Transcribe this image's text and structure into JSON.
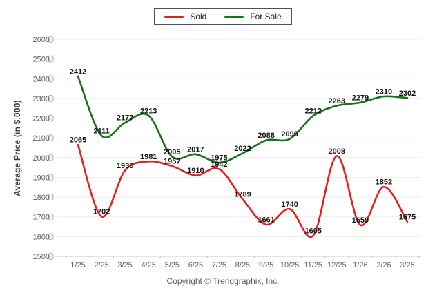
{
  "legend": {
    "items": [
      {
        "label": "Sold",
        "color": "#e3201b"
      },
      {
        "label": "For Sale",
        "color": "#117511"
      }
    ]
  },
  "footer": {
    "copyright": "Copyright © Trendgraphix, Inc."
  },
  "chart_data": {
    "type": "line",
    "title": "",
    "xlabel": "",
    "ylabel": "Average Price (in $,000)",
    "categories": [
      "1/25",
      "2/25",
      "3/25",
      "4/25",
      "5/25",
      "6/25",
      "7/25",
      "8/25",
      "9/25",
      "10/25",
      "11/25",
      "12/25",
      "1/26",
      "2/26",
      "3/26"
    ],
    "series": [
      {
        "name": "Sold",
        "color": "#e3201b",
        "values": [
          2065,
          1702,
          1935,
          1981,
          1957,
          1910,
          1942,
          1789,
          1661,
          1740,
          1605,
          2008,
          1659,
          1852,
          1675
        ]
      },
      {
        "name": "For Sale",
        "color": "#117511",
        "values": [
          2412,
          2111,
          2177,
          2213,
          2005,
          2017,
          1975,
          2022,
          2088,
          2095,
          2212,
          2263,
          2279,
          2310,
          2302
        ]
      }
    ],
    "ylim": [
      1500,
      2600
    ],
    "ytick_step": 100,
    "grid": true,
    "smooth": true,
    "data_labels": true,
    "legend_position": "top-center",
    "colors": {
      "gridline": "#ededea",
      "axis_line": "#c9c9c9",
      "tick_mark": "#bdc2c8",
      "tick_label": "#5b616b",
      "data_label": "#111111",
      "tick_capsule_fill": "#fdf8e3",
      "tick_capsule_stroke": "#8fb2cf"
    }
  }
}
